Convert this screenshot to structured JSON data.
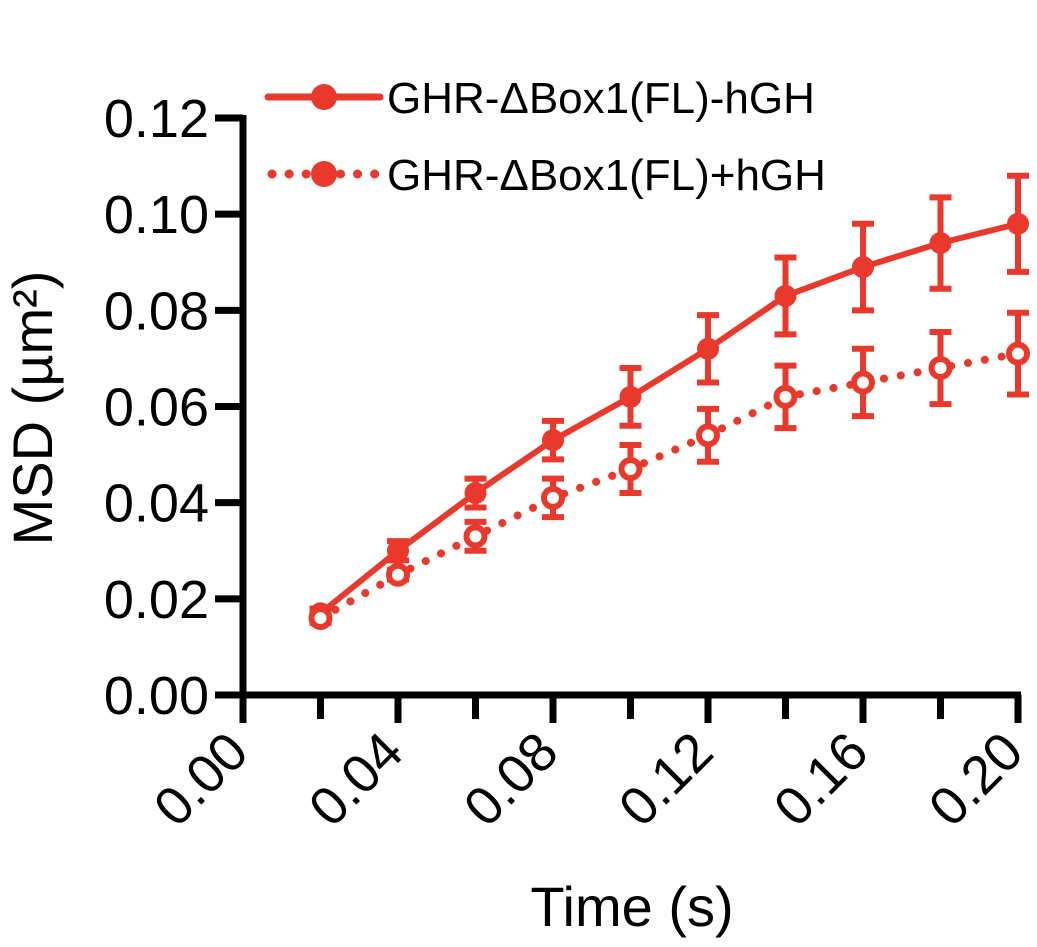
{
  "chart_data": {
    "type": "line",
    "xlabel": "Time (s)",
    "ylabel": "MSD (µm²)",
    "xlim": [
      0.0,
      0.2
    ],
    "ylim": [
      0.0,
      0.12
    ],
    "xticks": [
      "0.00",
      "0.04",
      "0.08",
      "0.12",
      "0.16",
      "0.20"
    ],
    "yticks": [
      "0.00",
      "0.02",
      "0.04",
      "0.06",
      "0.08",
      "0.10",
      "0.12"
    ],
    "grid": false,
    "legend_position": "top",
    "color": "#e8392c",
    "series": [
      {
        "name": "GHR-ΔBox1(FL)-hGH",
        "style": "solid",
        "marker": "filled-circle",
        "x": [
          0.02,
          0.04,
          0.06,
          0.08,
          0.1,
          0.12,
          0.14,
          0.16,
          0.18,
          0.2
        ],
        "y": [
          0.017,
          0.03,
          0.042,
          0.053,
          0.062,
          0.072,
          0.083,
          0.089,
          0.094,
          0.098
        ],
        "err": [
          0.001,
          0.002,
          0.003,
          0.004,
          0.006,
          0.007,
          0.008,
          0.009,
          0.0095,
          0.01
        ]
      },
      {
        "name": "GHR-ΔBox1(FL)+hGH",
        "style": "dotted",
        "marker": "open-circle",
        "x": [
          0.02,
          0.04,
          0.06,
          0.08,
          0.1,
          0.12,
          0.14,
          0.16,
          0.18,
          0.2
        ],
        "y": [
          0.016,
          0.025,
          0.033,
          0.041,
          0.047,
          0.054,
          0.062,
          0.065,
          0.068,
          0.071
        ],
        "err": [
          0.001,
          0.001,
          0.003,
          0.004,
          0.005,
          0.0055,
          0.0065,
          0.007,
          0.0075,
          0.0085
        ]
      }
    ]
  }
}
